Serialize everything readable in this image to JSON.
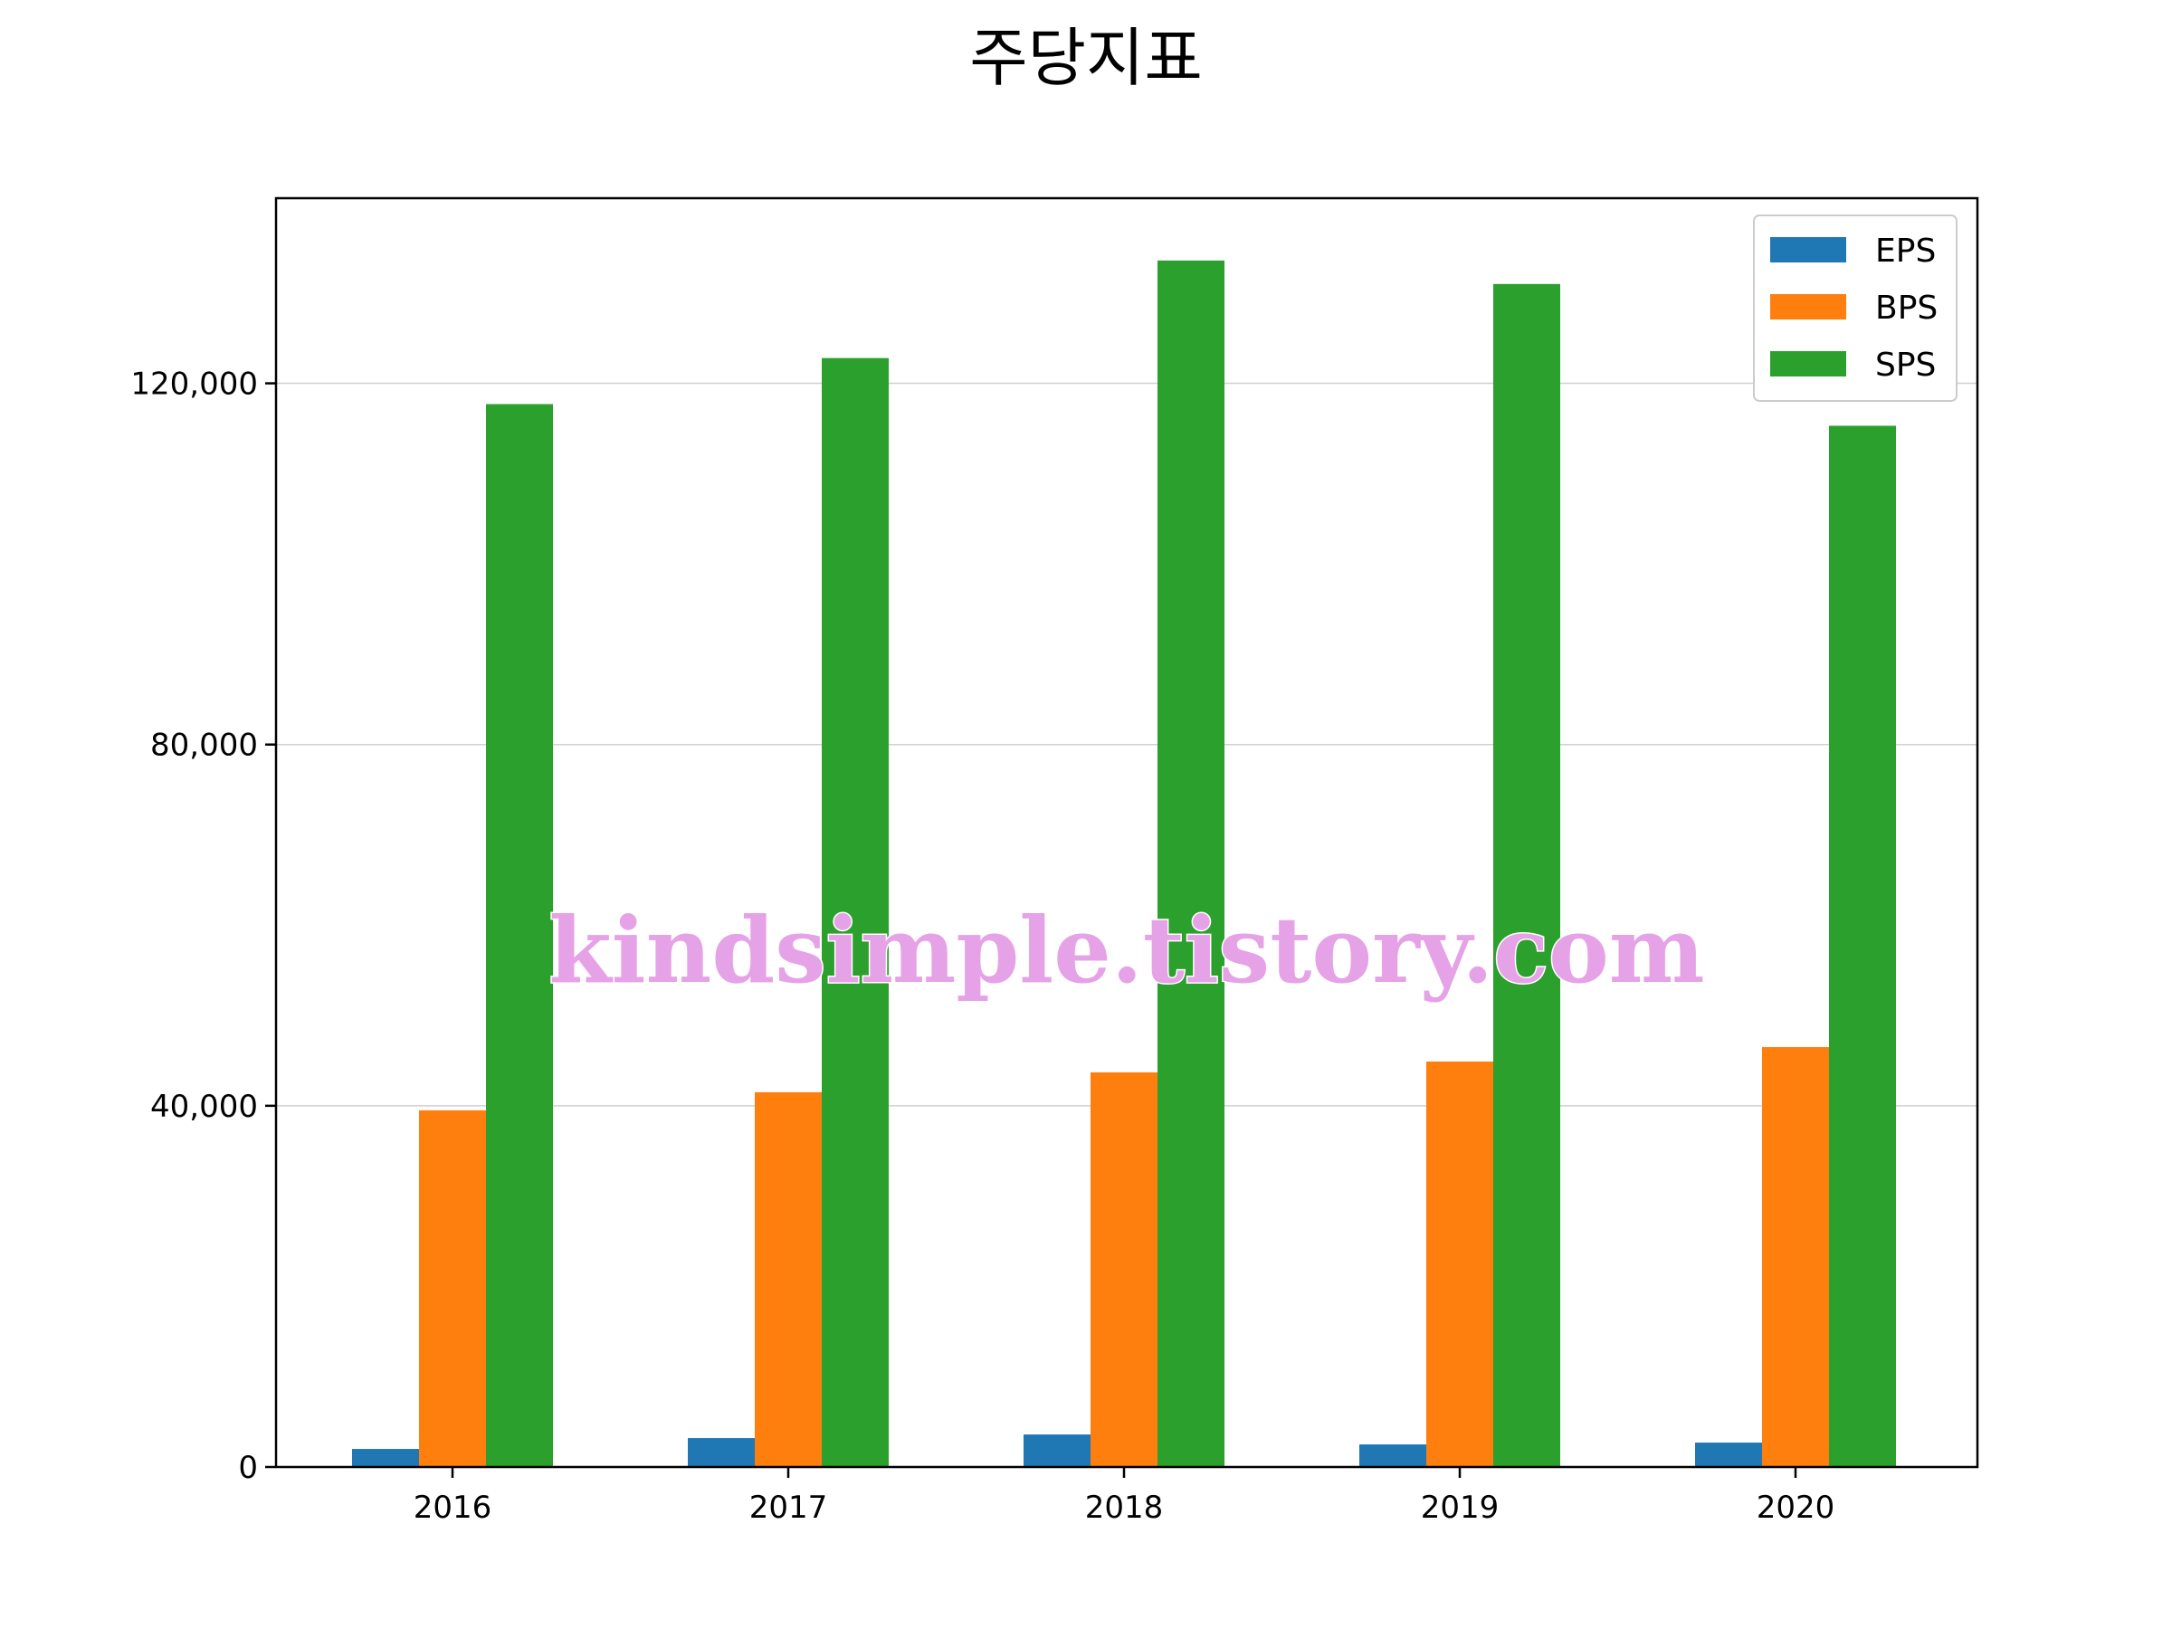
{
  "watermark": "kindsimple.tistory.com",
  "chart_data": {
    "type": "bar",
    "title": "주당지표",
    "xlabel": "",
    "ylabel": "",
    "categories": [
      "2016",
      "2017",
      "2018",
      "2019",
      "2020"
    ],
    "series": [
      {
        "name": "EPS",
        "color": "#1f77b4",
        "values": [
          2000,
          3200,
          3600,
          2500,
          2700
        ]
      },
      {
        "name": "BPS",
        "color": "#ff7f0e",
        "values": [
          39500,
          41500,
          43700,
          44900,
          46500
        ]
      },
      {
        "name": "SPS",
        "color": "#2ca02c",
        "values": [
          117700,
          122800,
          133600,
          131000,
          115300
        ]
      }
    ],
    "ylim": [
      0,
      140500
    ],
    "yticks": [
      0,
      40000,
      80000,
      120000
    ],
    "ytick_labels": [
      "0",
      "40,000",
      "80,000",
      "120,000"
    ],
    "grid": "horizontal",
    "legend_position": "top-right"
  }
}
